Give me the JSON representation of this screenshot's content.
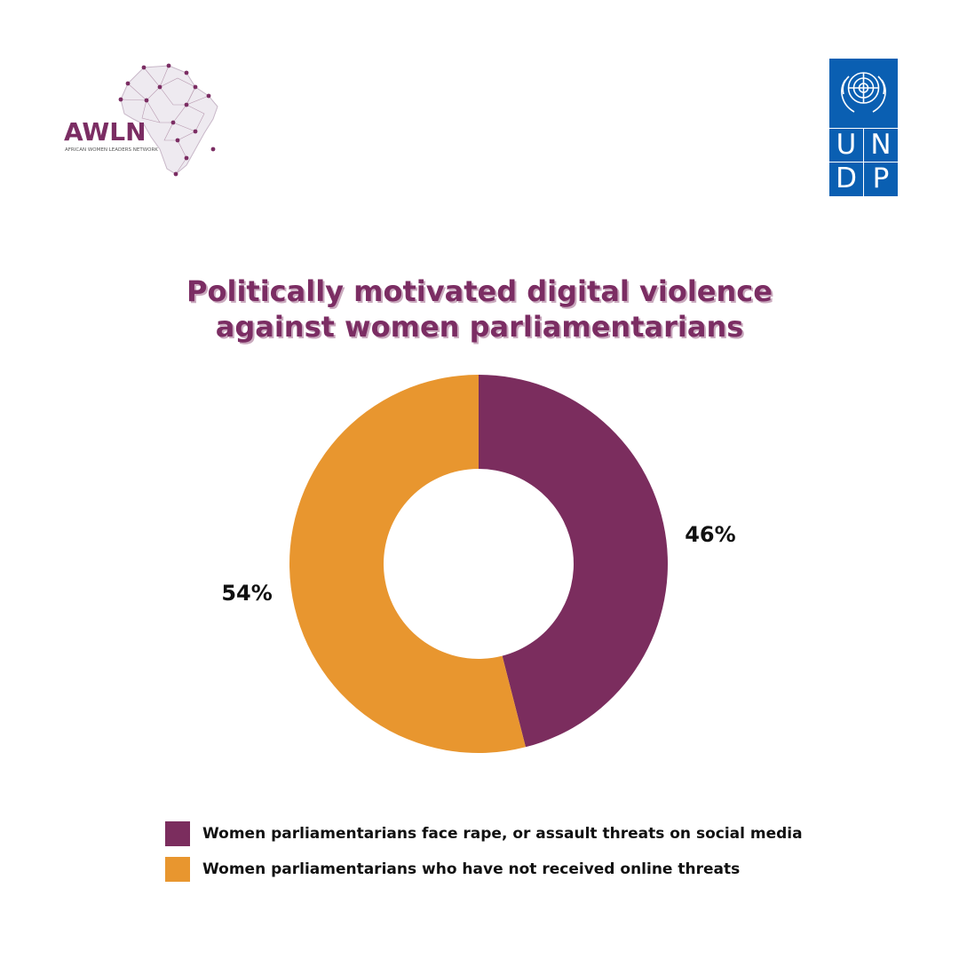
{
  "header": {
    "left_logo": {
      "icon": "africa-network-map-icon",
      "text": "AWLN",
      "subtext": "AFRICAN WOMEN LEADERS NETWORK"
    },
    "right_logo": {
      "icon": "un-emblem-icon",
      "letters": [
        "U",
        "N",
        "D",
        "P"
      ],
      "color": "#0a5fb2"
    }
  },
  "chart_data": {
    "type": "pie",
    "title_lines": [
      "Politically motivated digital violence",
      "against women parliamentarians"
    ],
    "donut": true,
    "slices": [
      {
        "label": "Women parliamentarians face rape, or assault threats on social media",
        "value": 46,
        "display": "46%",
        "color": "#7b2d5e"
      },
      {
        "label": "Women parliamentarians who have not received online threats",
        "value": 54,
        "display": "54%",
        "color": "#e8962f"
      }
    ],
    "legend_position": "bottom"
  }
}
